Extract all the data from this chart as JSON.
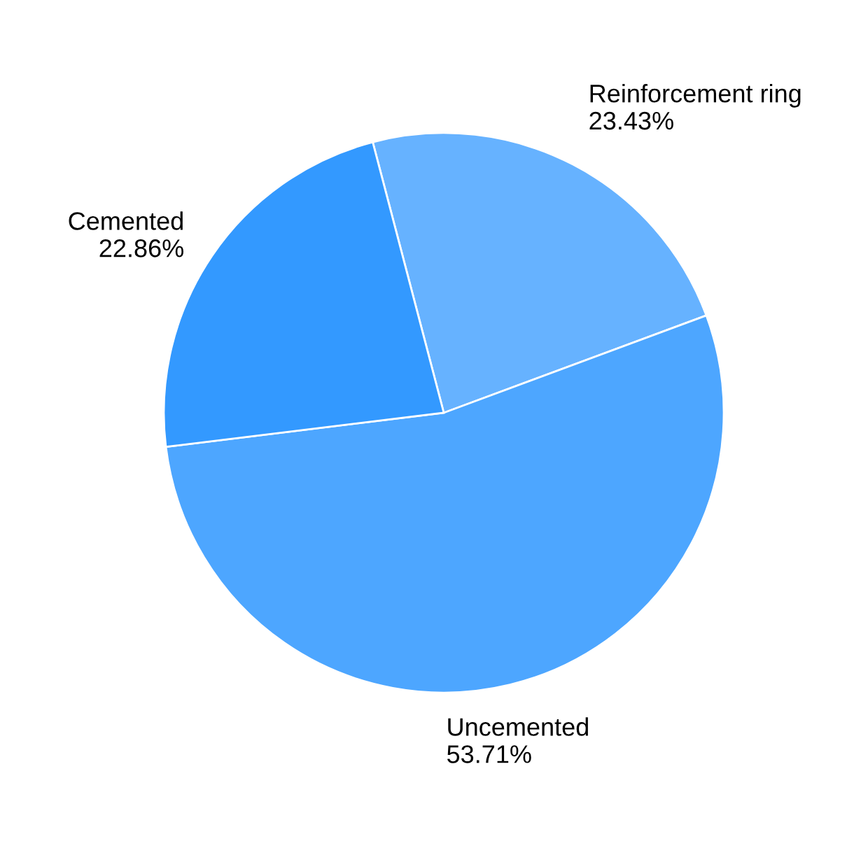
{
  "chart_data": {
    "type": "pie",
    "categories": [
      "Reinforcement ring",
      "Uncemented",
      "Cemented"
    ],
    "values": [
      23.43,
      53.71,
      22.86
    ],
    "value_labels": [
      "23.43%",
      "53.71%",
      "22.86%"
    ],
    "colors": [
      "#66b2ff",
      "#4da6ff",
      "#3399ff"
    ],
    "legend": false
  }
}
